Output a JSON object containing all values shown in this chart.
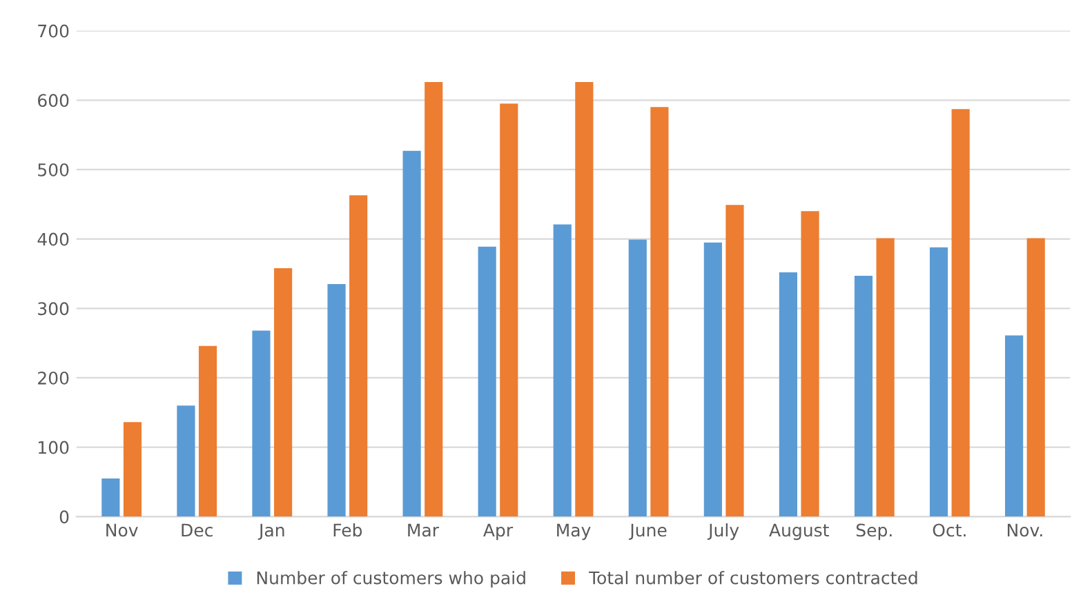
{
  "chart_data": {
    "type": "bar",
    "categories": [
      "Nov",
      "Dec",
      "Jan",
      "Feb",
      "Mar",
      "Apr",
      "May",
      "June",
      "July",
      "August",
      "Sep.",
      "Oct.",
      "Nov."
    ],
    "series": [
      {
        "name": "Number of customers who paid",
        "color": "#5b9bd5",
        "values": [
          55,
          160,
          268,
          335,
          527,
          389,
          421,
          399,
          395,
          352,
          347,
          388,
          261
        ]
      },
      {
        "name": "Total number of customers contracted",
        "color": "#ed7d31",
        "values": [
          136,
          246,
          358,
          463,
          626,
          595,
          626,
          590,
          449,
          440,
          401,
          587,
          401
        ]
      }
    ],
    "ylim": [
      0,
      700
    ],
    "yticks": [
      0,
      100,
      200,
      300,
      400,
      500,
      600,
      700
    ],
    "grid": "y",
    "legend": "bottom"
  }
}
